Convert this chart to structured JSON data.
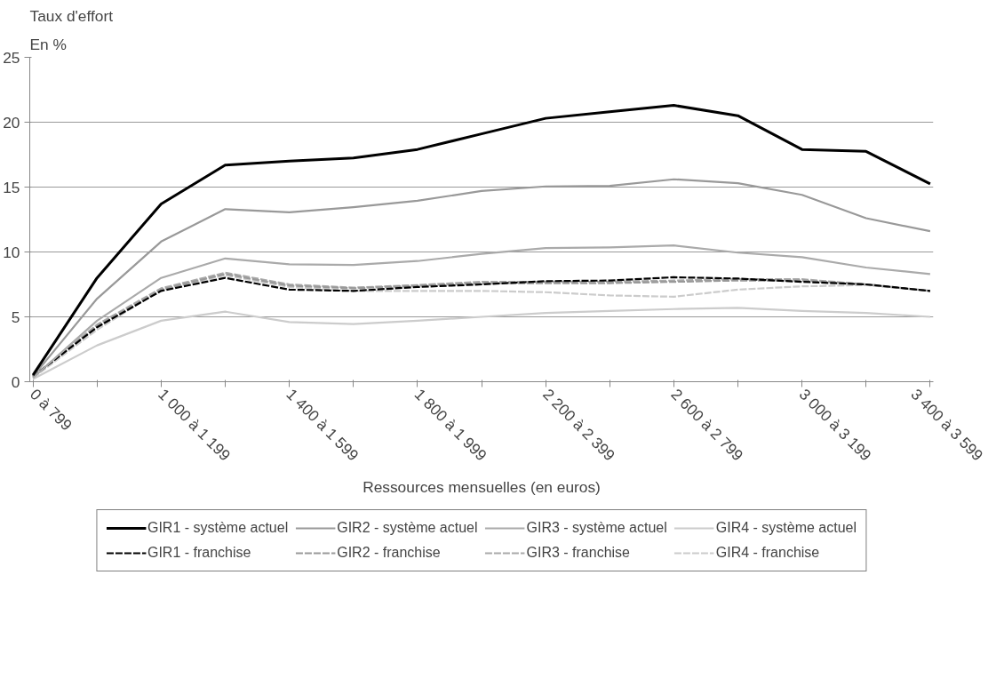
{
  "chart_data": {
    "type": "line",
    "title": "Taux d'effort",
    "subtitle": "En %",
    "xlabel": "Ressources mensuelles (en euros)",
    "categories": [
      "0 à 799",
      null,
      "1 000 à 1 199",
      null,
      "1 400 à 1 599",
      null,
      "1 800 à 1 999",
      null,
      "2 200 à 2 399",
      null,
      "2 600 à 2 799",
      null,
      "3 000 à 3 199",
      null,
      "3 400 à 3 599"
    ],
    "ylim": [
      0,
      25
    ],
    "yticks": [
      0,
      5,
      10,
      15,
      20,
      25
    ],
    "grid": "y",
    "legend": "bottom",
    "series": [
      {
        "name": "GIR1 - système actuel",
        "color": "#000000",
        "line_style": "solid",
        "values": [
          0.5,
          8.0,
          13.7,
          16.7,
          17.0,
          17.25,
          17.9,
          19.1,
          20.3,
          20.8,
          21.3,
          20.5,
          17.9,
          17.75,
          15.25
        ]
      },
      {
        "name": "GIR2 - système actuel",
        "color": "#999999",
        "line_style": "solid",
        "values": [
          0.4,
          6.4,
          10.8,
          13.3,
          13.05,
          13.45,
          13.95,
          14.7,
          15.05,
          15.1,
          15.6,
          15.3,
          14.4,
          12.6,
          11.6
        ]
      },
      {
        "name": "GIR3 - système actuel",
        "color": "#aaaaaa",
        "line_style": "solid",
        "values": [
          0.3,
          4.7,
          8.0,
          9.5,
          9.05,
          9.0,
          9.3,
          9.85,
          10.3,
          10.35,
          10.5,
          9.95,
          9.6,
          8.8,
          8.3
        ]
      },
      {
        "name": "GIR4 - système actuel",
        "color": "#cccccc",
        "line_style": "solid",
        "values": [
          0.2,
          2.8,
          4.7,
          5.4,
          4.6,
          4.45,
          4.7,
          5.0,
          5.3,
          5.45,
          5.6,
          5.7,
          5.45,
          5.3,
          5.0
        ]
      },
      {
        "name": "GIR1 - franchise",
        "color": "#000000",
        "line_style": "dashed",
        "values": [
          0.4,
          4.2,
          7.0,
          8.0,
          7.1,
          7.0,
          7.3,
          7.5,
          7.75,
          7.8,
          8.05,
          7.95,
          7.7,
          7.5,
          7.0
        ]
      },
      {
        "name": "GIR2 - franchise",
        "color": "#999999",
        "line_style": "dashed",
        "values": [
          0.4,
          4.3,
          7.1,
          8.3,
          7.4,
          7.2,
          7.4,
          7.6,
          7.6,
          7.6,
          7.7,
          7.8,
          7.8,
          7.5,
          7.0
        ]
      },
      {
        "name": "GIR3 - franchise",
        "color": "#aaaaaa",
        "line_style": "dashed",
        "values": [
          0.4,
          4.4,
          7.2,
          8.4,
          7.5,
          7.25,
          7.45,
          7.7,
          7.7,
          7.7,
          7.8,
          7.9,
          7.9,
          7.5,
          7.0
        ]
      },
      {
        "name": "GIR4 - franchise",
        "color": "#cccccc",
        "line_style": "dashed",
        "values": [
          0.3,
          4.0,
          7.1,
          8.2,
          7.3,
          7.0,
          7.0,
          7.0,
          6.9,
          6.65,
          6.55,
          7.1,
          7.35,
          7.45,
          7.0
        ]
      }
    ]
  }
}
